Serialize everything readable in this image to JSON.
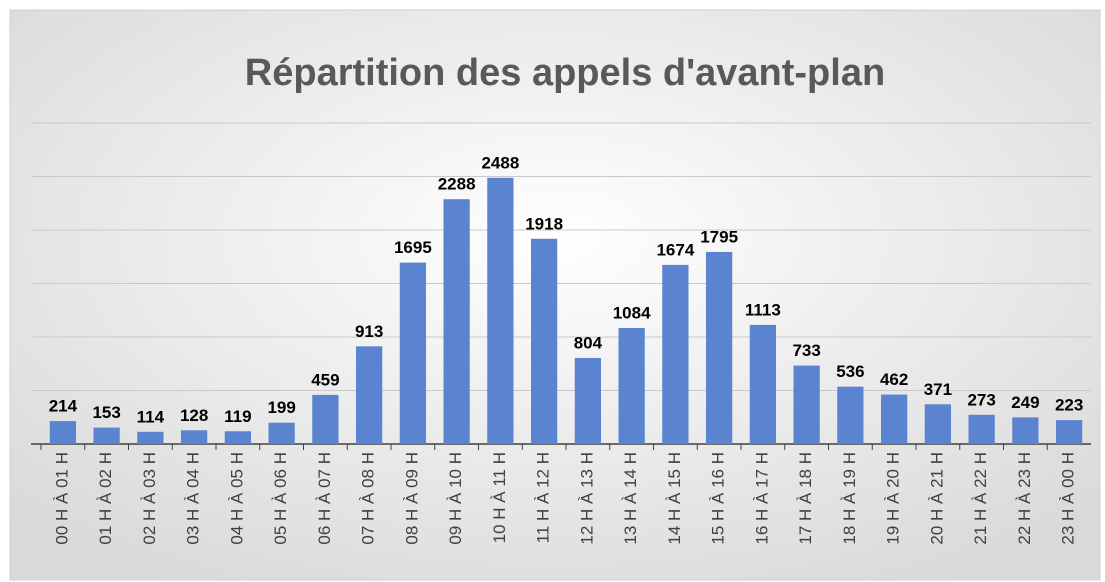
{
  "chart_data": {
    "type": "bar",
    "title": "Répartition des appels d'avant-plan",
    "categories": [
      "00 H À 01 H",
      "01 H À 02 H",
      "02 H À 03 H",
      "03 H À 04 H",
      "04 H À 05 H",
      "05 H À 06 H",
      "06 H À 07 H",
      "07 H À 08 H",
      "08 H À 09 H",
      "09 H À 10 H",
      "10 H À 11 H",
      "11 H À 12 H",
      "12 H À 13 H",
      "13 H À 14 H",
      "14 H À 15 H",
      "15 H À 16 H",
      "16 H À 17 H",
      "17 H À 18 H",
      "18 H À 19 H",
      "19 H À 20 H",
      "20 H À 21 H",
      "21 H À 22 H",
      "22 H À 23 H",
      "23 H À 00 H"
    ],
    "values": [
      214,
      153,
      114,
      128,
      119,
      199,
      459,
      913,
      1695,
      2288,
      2488,
      1918,
      804,
      1084,
      1674,
      1795,
      1113,
      733,
      536,
      462,
      371,
      273,
      249,
      223
    ],
    "color": "#5b84d0",
    "ylim": [
      0,
      3000
    ],
    "yticks": [
      0,
      500,
      1000,
      1500,
      2000,
      2500,
      3000
    ],
    "grid": true
  }
}
